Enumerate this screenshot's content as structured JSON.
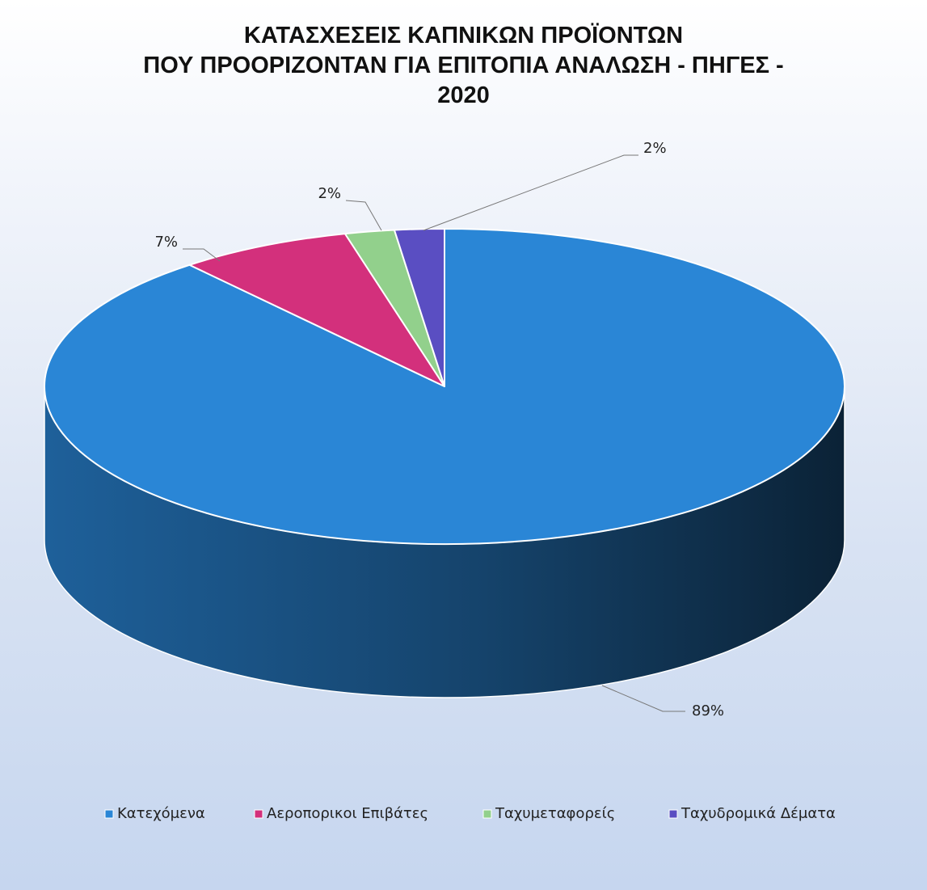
{
  "chart_data": {
    "type": "pie3d",
    "title": "ΚΑΤΑΣΧΕΣΕΙΣ ΚΑΠΝΙΚΩΝ ΠΡΟΪΟΝΤΩΝ\nΠΟΥ ΠΡΟΟΡΙΖΟΝΤΑΝ ΓΙΑ ΕΠΙΤΟΠΙΑ ΑΝΑΛΩΣΗ - ΠΗΓΕΣ -\n2020",
    "categories": [
      "Κατεχόμενα",
      "Αεροπορικοι Επιβάτες",
      "Ταχυμεταφορείς",
      "Ταχυδρομικά Δέματα"
    ],
    "values": [
      89,
      7,
      2,
      2
    ],
    "value_labels": [
      "89%",
      "7%",
      "2%",
      "2%"
    ],
    "colors": [
      "#2a86d6",
      "#d3307c",
      "#92d08c",
      "#5a4ec2"
    ],
    "legend": "bottom"
  }
}
